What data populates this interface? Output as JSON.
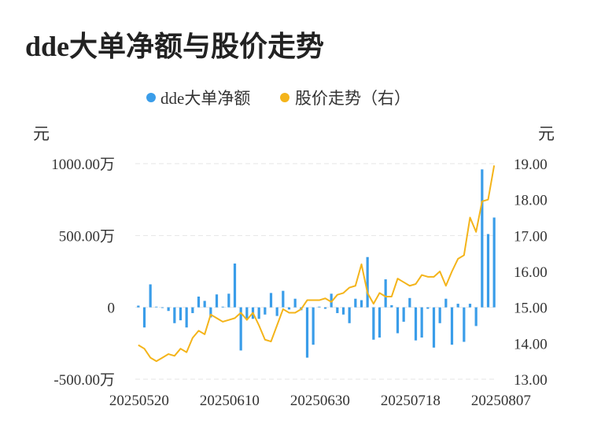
{
  "chart_data": {
    "type": "bar+line",
    "title": "dde大单净额与股价走势",
    "legend": {
      "placement": "top-center",
      "items": [
        {
          "name": "dde大单净额",
          "color": "#3A9DE9",
          "marker": "dot"
        },
        {
          "name": "股价走势（右）",
          "color": "#F4B41A",
          "marker": "dot"
        }
      ]
    },
    "y_left": {
      "unit": "元",
      "ylim": [
        -500,
        1000
      ],
      "ticks": [
        {
          "value": 1000,
          "label": "1000.00万"
        },
        {
          "value": 500,
          "label": "500.00万"
        },
        {
          "value": 0,
          "label": "0"
        },
        {
          "value": -500,
          "label": "-500.00万"
        }
      ]
    },
    "y_right": {
      "unit": "元",
      "ylim": [
        13,
        19
      ],
      "ticks": [
        {
          "value": 19,
          "label": "19.00"
        },
        {
          "value": 18,
          "label": "18.00"
        },
        {
          "value": 17,
          "label": "17.00"
        },
        {
          "value": 16,
          "label": "16.00"
        },
        {
          "value": 15,
          "label": "15.00"
        },
        {
          "value": 14,
          "label": "14.00"
        },
        {
          "value": 13,
          "label": "13.00"
        }
      ]
    },
    "x_ticks": [
      {
        "index": 0,
        "label": "20250520"
      },
      {
        "index": 15,
        "label": "20250610"
      },
      {
        "index": 30,
        "label": "20250630"
      },
      {
        "index": 45,
        "label": "20250718"
      },
      {
        "index": 60,
        "label": "20250807"
      }
    ],
    "grid": "horizontal dashed",
    "series": [
      {
        "name": "dde大单净额",
        "type": "bar",
        "axis": "left",
        "color": "#3A9DE9",
        "values": [
          12,
          -140,
          160,
          5,
          0,
          -25,
          -110,
          -90,
          -140,
          -40,
          75,
          45,
          -70,
          90,
          5,
          95,
          305,
          -300,
          -80,
          -80,
          -80,
          -50,
          100,
          -60,
          115,
          -15,
          60,
          -20,
          -350,
          -260,
          5,
          -10,
          95,
          -40,
          -50,
          -110,
          60,
          50,
          350,
          -225,
          -210,
          195,
          15,
          -180,
          -100,
          65,
          -230,
          -210,
          -10,
          -280,
          -110,
          60,
          -260,
          25,
          -240,
          25,
          -130,
          960,
          510,
          625
        ]
      },
      {
        "name": "股价走势（右）",
        "type": "line",
        "axis": "right",
        "color": "#F4B41A",
        "values": [
          13.95,
          13.85,
          13.6,
          13.5,
          13.6,
          13.7,
          13.65,
          13.85,
          13.75,
          14.15,
          14.35,
          14.25,
          14.8,
          14.7,
          14.6,
          14.65,
          14.7,
          14.85,
          14.65,
          14.85,
          14.5,
          14.1,
          14.05,
          14.5,
          14.95,
          14.85,
          14.85,
          14.95,
          15.2,
          15.2,
          15.2,
          15.25,
          15.15,
          15.35,
          15.4,
          15.55,
          15.6,
          16.2,
          15.4,
          15.1,
          15.4,
          15.3,
          15.3,
          15.8,
          15.7,
          15.6,
          15.65,
          15.9,
          15.85,
          15.85,
          16.0,
          15.6,
          16.0,
          16.35,
          16.45,
          17.5,
          17.1,
          17.95,
          18.0,
          18.95
        ]
      }
    ]
  }
}
